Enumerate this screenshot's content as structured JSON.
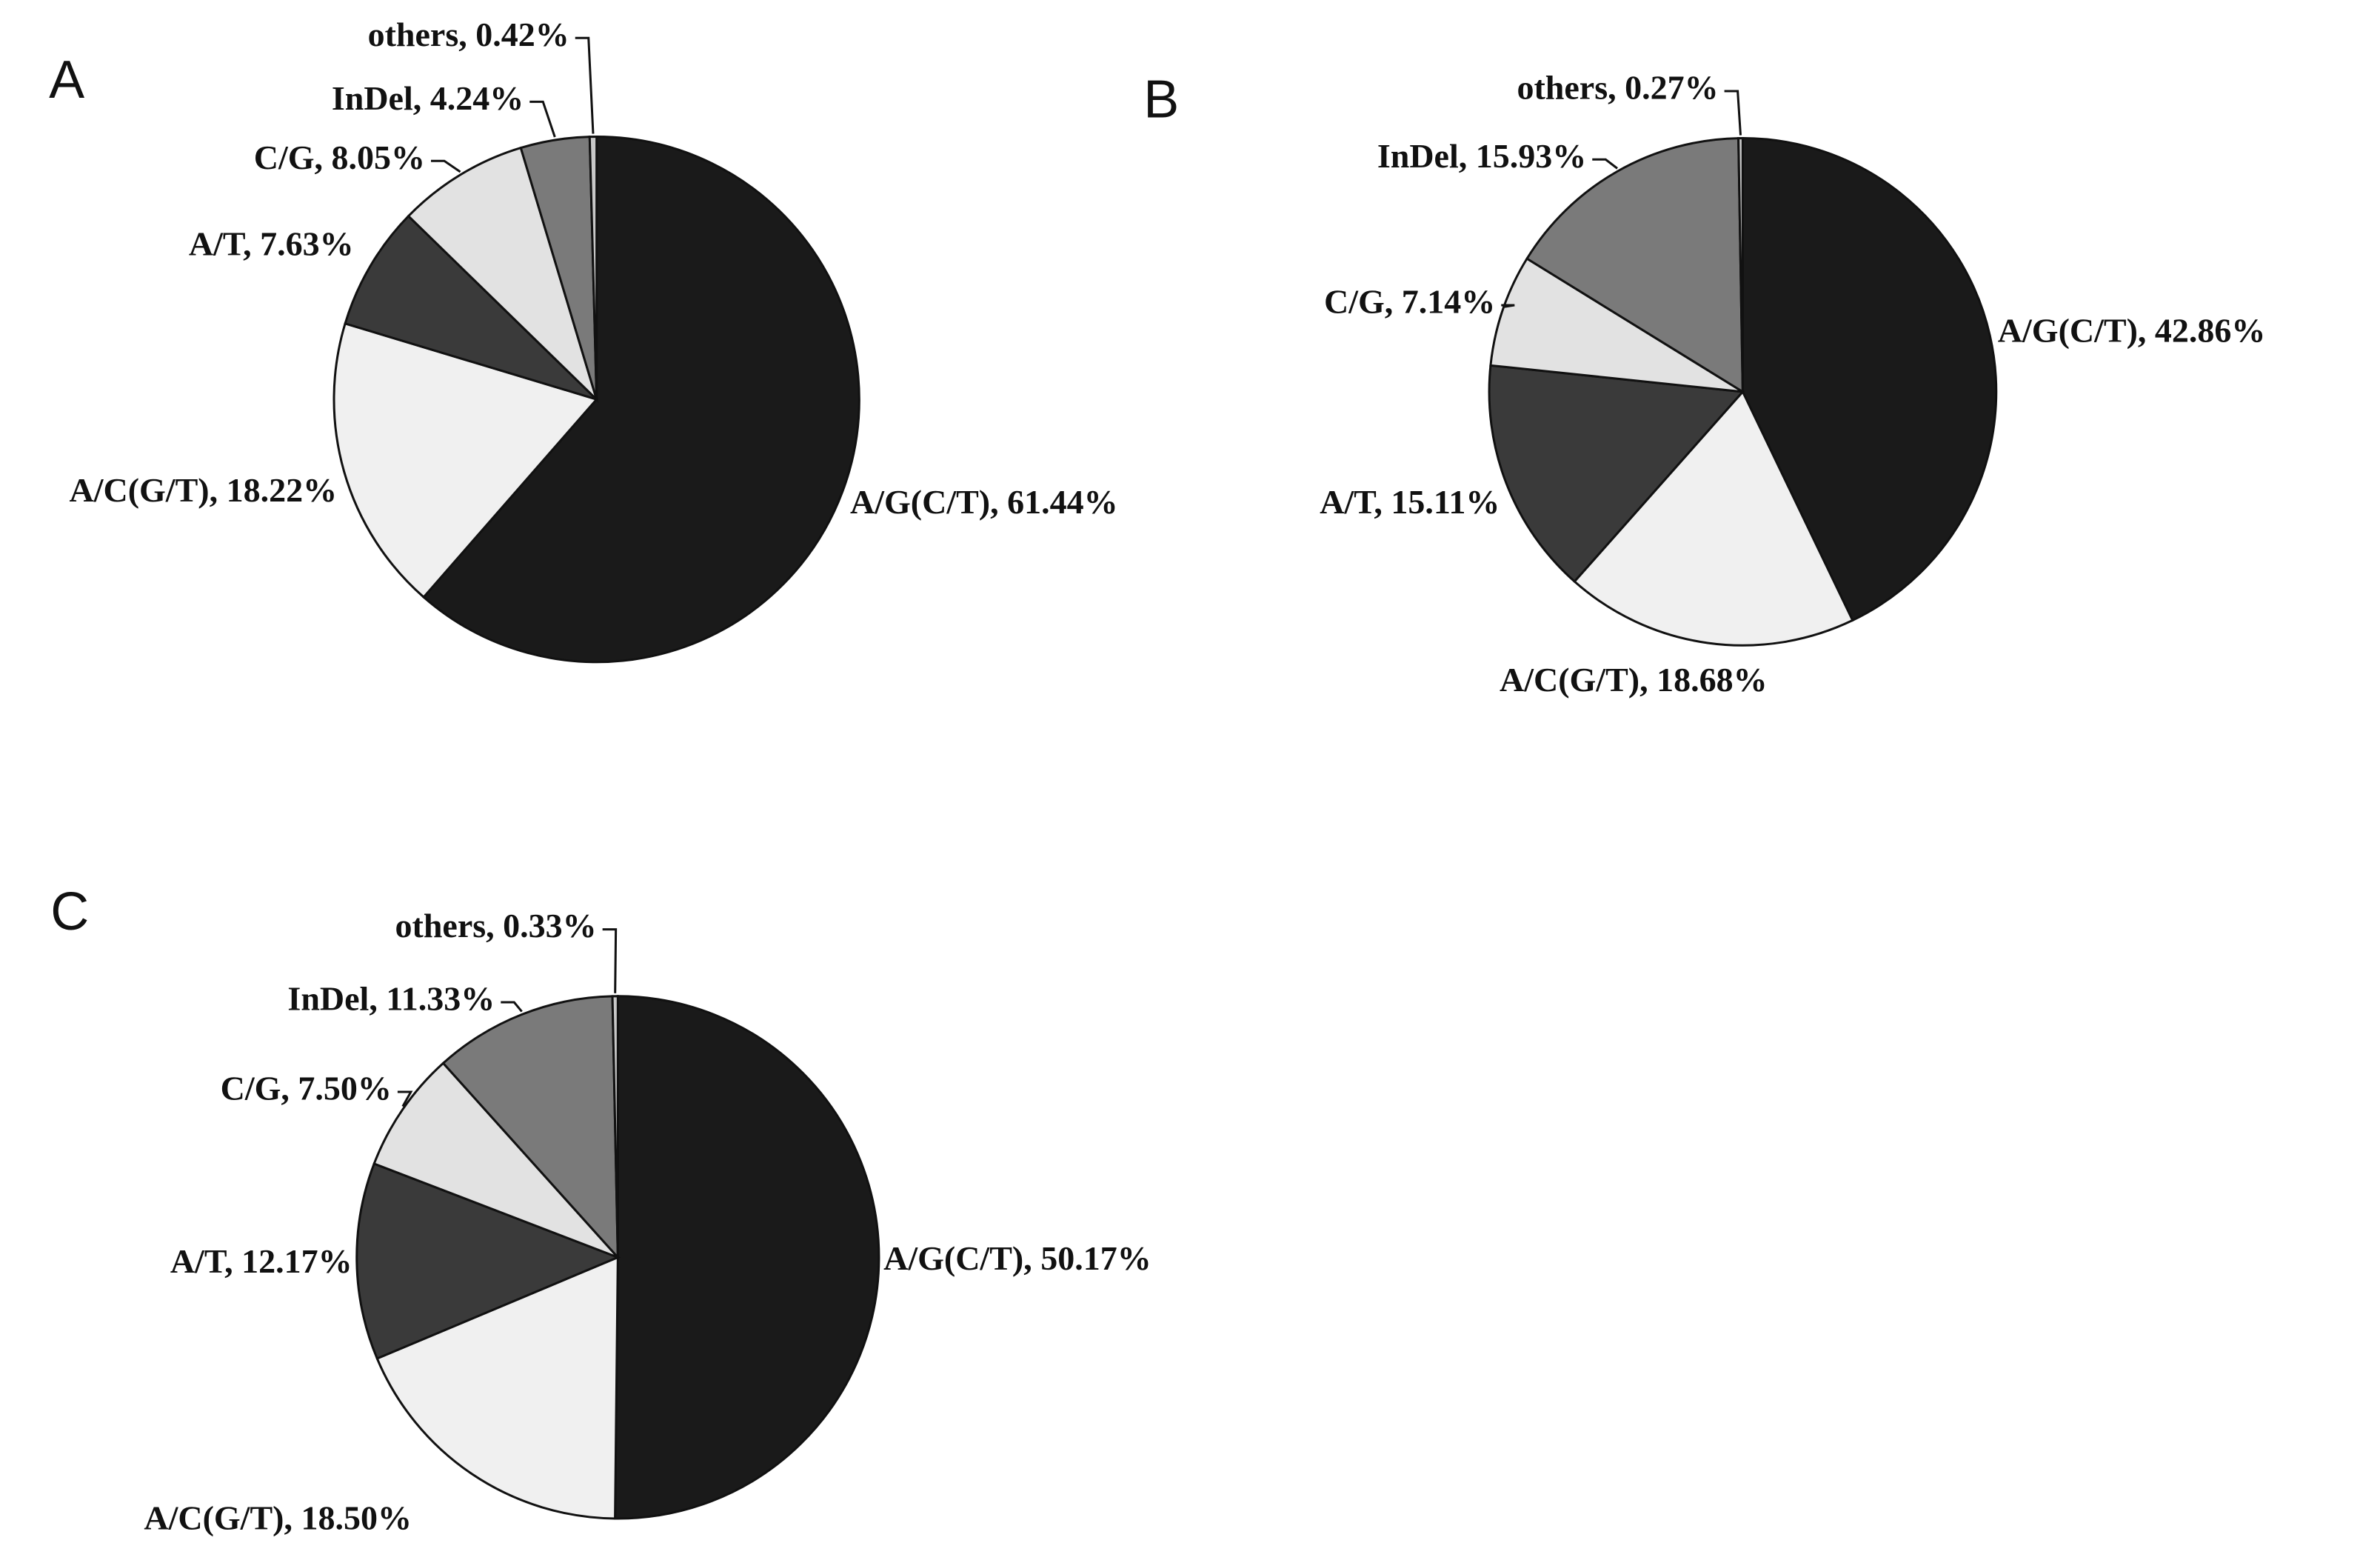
{
  "chart_data": [
    {
      "type": "pie",
      "panel": "A",
      "values": [
        61.44,
        18.22,
        7.63,
        8.05,
        4.24,
        0.42
      ],
      "value_labels": [
        "A/G(C/T), 61.44%",
        "A/C(G/T), 18.22%",
        "A/T, 7.63%",
        "C/G, 8.05%",
        "InDel, 4.24%",
        "others, 0.42%"
      ],
      "colors": [
        "#1a1a1a",
        "#f0f0f0",
        "#3a3a3a",
        "#e2e2e2",
        "#7a7a7a",
        "#c8c8c8"
      ]
    },
    {
      "type": "pie",
      "panel": "B",
      "values": [
        42.86,
        18.68,
        15.11,
        7.14,
        15.93,
        0.27
      ],
      "value_labels": [
        "A/G(C/T), 42.86%",
        "A/C(G/T), 18.68%",
        "A/T, 15.11%",
        "C/G, 7.14%",
        "InDel, 15.93%",
        "others, 0.27%"
      ],
      "colors": [
        "#1a1a1a",
        "#f0f0f0",
        "#3a3a3a",
        "#e2e2e2",
        "#7a7a7a",
        "#c8c8c8"
      ]
    },
    {
      "type": "pie",
      "panel": "C",
      "values": [
        50.17,
        18.5,
        12.17,
        7.5,
        11.33,
        0.33
      ],
      "value_labels": [
        "A/G(C/T), 50.17%",
        "A/C(G/T), 18.50%",
        "A/T, 12.17%",
        "C/G, 7.50%",
        "InDel, 11.33%",
        "others, 0.33%"
      ],
      "colors": [
        "#1a1a1a",
        "#f0f0f0",
        "#3a3a3a",
        "#e2e2e2",
        "#7a7a7a",
        "#c8c8c8"
      ]
    }
  ]
}
